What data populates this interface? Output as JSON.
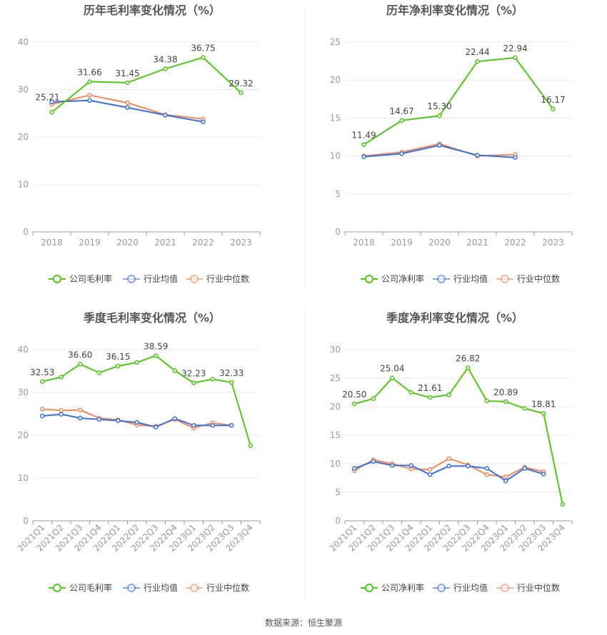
{
  "colors": {
    "company": "#52c41a",
    "average": "#3b6fd9",
    "median": "#f08a5d",
    "grid": "#e8e8e8",
    "axis": "#999999",
    "tick_text": "#999999",
    "title_text": "#555555",
    "label_text": "#444444",
    "divider": "#eeeeee"
  },
  "source": {
    "label": "数据来源：",
    "value": "恒生聚源"
  },
  "chart_data": [
    {
      "id": "annual-gross",
      "type": "line",
      "title": "历年毛利率变化情况（%）",
      "categories": [
        "2018",
        "2019",
        "2020",
        "2021",
        "2022",
        "2023"
      ],
      "ylim": [
        0,
        40
      ],
      "yticks": [
        0,
        10,
        20,
        30,
        40
      ],
      "rotate_x": false,
      "series": [
        {
          "name": "公司毛利率",
          "key": "company",
          "values": [
            25.21,
            31.66,
            31.45,
            34.38,
            36.75,
            29.32
          ]
        },
        {
          "name": "行业均值",
          "key": "average",
          "values": [
            27.4,
            27.7,
            26.2,
            24.6,
            23.2,
            null
          ]
        },
        {
          "name": "行业中位数",
          "key": "median",
          "values": [
            26.9,
            28.8,
            27.2,
            24.7,
            23.8,
            null
          ]
        }
      ],
      "data_labels": [
        "25.21",
        "31.66",
        "31.45",
        "34.38",
        "36.75",
        "29.32"
      ]
    },
    {
      "id": "annual-net",
      "type": "line",
      "title": "历年净利率变化情况（%）",
      "categories": [
        "2018",
        "2019",
        "2020",
        "2021",
        "2022",
        "2023"
      ],
      "ylim": [
        0,
        25
      ],
      "yticks": [
        0,
        5,
        10,
        15,
        20,
        25
      ],
      "rotate_x": false,
      "series": [
        {
          "name": "公司净利率",
          "key": "company",
          "values": [
            11.49,
            14.67,
            15.3,
            22.44,
            22.94,
            16.17
          ]
        },
        {
          "name": "行业均值",
          "key": "average",
          "values": [
            9.9,
            10.3,
            11.4,
            10.1,
            9.8,
            null
          ]
        },
        {
          "name": "行业中位数",
          "key": "median",
          "values": [
            10.0,
            10.5,
            11.6,
            10.0,
            10.2,
            null
          ]
        }
      ],
      "data_labels": [
        "11.49",
        "14.67",
        "15.30",
        "22.44",
        "22.94",
        "16.17"
      ]
    },
    {
      "id": "quarterly-gross",
      "type": "line",
      "title": "季度毛利率变化情况（%）",
      "categories": [
        "2021Q1",
        "2021Q2",
        "2021Q3",
        "2021Q4",
        "2022Q1",
        "2022Q2",
        "2022Q3",
        "2022Q4",
        "2023Q1",
        "2023Q2",
        "2023Q3",
        "2023Q4"
      ],
      "ylim": [
        0,
        40
      ],
      "yticks": [
        0,
        10,
        20,
        30,
        40
      ],
      "rotate_x": true,
      "series": [
        {
          "name": "公司毛利率",
          "key": "company",
          "values": [
            32.53,
            33.6,
            36.6,
            34.6,
            36.15,
            37.0,
            38.59,
            35.1,
            32.23,
            33.1,
            32.33,
            17.6
          ]
        },
        {
          "name": "行业均值",
          "key": "average",
          "values": [
            24.5,
            24.9,
            24.0,
            23.7,
            23.4,
            23.0,
            21.9,
            23.9,
            22.3,
            22.3,
            22.3,
            null
          ]
        },
        {
          "name": "行业中位数",
          "key": "median",
          "values": [
            26.1,
            25.8,
            25.9,
            24.0,
            23.6,
            22.4,
            22.1,
            23.7,
            21.7,
            22.9,
            22.3,
            null
          ]
        }
      ],
      "data_labels": [
        "32.53",
        "",
        "36.60",
        "",
        "36.15",
        "",
        "38.59",
        "",
        "32.23",
        "",
        "32.33",
        ""
      ]
    },
    {
      "id": "quarterly-net",
      "type": "line",
      "title": "季度净利率变化情况（%）",
      "categories": [
        "2021Q1",
        "2021Q2",
        "2021Q3",
        "2021Q4",
        "2022Q1",
        "2022Q2",
        "2022Q3",
        "2022Q4",
        "2023Q1",
        "2023Q2",
        "2023Q3",
        "2023Q4"
      ],
      "ylim": [
        0,
        30
      ],
      "yticks": [
        0,
        5,
        10,
        15,
        20,
        25,
        30
      ],
      "rotate_x": true,
      "series": [
        {
          "name": "公司净利率",
          "key": "company",
          "values": [
            20.5,
            21.4,
            25.04,
            22.5,
            21.61,
            22.1,
            26.82,
            21.0,
            20.89,
            19.7,
            18.81,
            2.9
          ]
        },
        {
          "name": "行业均值",
          "key": "average",
          "values": [
            9.2,
            10.4,
            9.7,
            9.7,
            8.1,
            9.6,
            9.6,
            9.2,
            7.0,
            9.2,
            8.2,
            null
          ]
        },
        {
          "name": "行业中位数",
          "key": "median",
          "values": [
            8.8,
            10.7,
            10.0,
            9.1,
            9.0,
            10.9,
            9.8,
            8.1,
            7.7,
            9.4,
            8.6,
            null
          ]
        }
      ],
      "data_labels": [
        "20.50",
        "",
        "25.04",
        "",
        "21.61",
        "",
        "26.82",
        "",
        "20.89",
        "",
        "18.81",
        ""
      ]
    }
  ]
}
